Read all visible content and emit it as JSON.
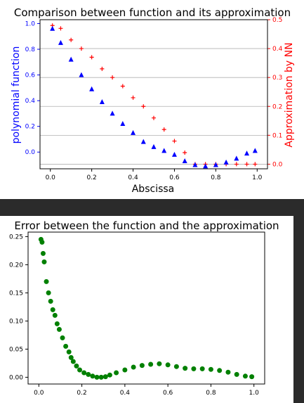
{
  "chart_data": [
    {
      "type": "scatter",
      "title": "Comparison between function and its approximation",
      "xlabel": "Abscissa",
      "ylabel_left": "polynomial function",
      "ylabel_right": "Approximation by NN",
      "xlim": [
        -0.05,
        1.05
      ],
      "ylim_left": [
        -0.13,
        1.03
      ],
      "ylim_right": [
        -0.016,
        0.5
      ],
      "x_ticks": [
        "0.0",
        "0.2",
        "0.4",
        "0.6",
        "0.8",
        "1.0"
      ],
      "y_left_ticks": [
        "0.0",
        "0.2",
        "0.4",
        "0.6",
        "0.8",
        "1.0"
      ],
      "y_right_ticks": [
        "0.0",
        "0.1",
        "0.2",
        "0.3",
        "0.4",
        "0.5"
      ],
      "grid": "horizontal, right axis",
      "colors": {
        "left": "#0000ff",
        "right": "#ff0000"
      },
      "series": [
        {
          "axis": "left",
          "marker": "triangle",
          "color": "#0000ff",
          "x": [
            0.01,
            0.05,
            0.1,
            0.15,
            0.2,
            0.25,
            0.3,
            0.35,
            0.4,
            0.45,
            0.5,
            0.55,
            0.6,
            0.65,
            0.7,
            0.75,
            0.8,
            0.85,
            0.9,
            0.95,
            0.99
          ],
          "y": [
            0.96,
            0.85,
            0.72,
            0.6,
            0.49,
            0.39,
            0.3,
            0.22,
            0.15,
            0.08,
            0.04,
            0.01,
            -0.02,
            -0.07,
            -0.1,
            -0.11,
            -0.1,
            -0.08,
            -0.05,
            -0.01,
            0.01
          ]
        },
        {
          "axis": "right",
          "marker": "plus",
          "color": "#ff0000",
          "x": [
            0.01,
            0.05,
            0.1,
            0.15,
            0.2,
            0.25,
            0.3,
            0.35,
            0.4,
            0.45,
            0.5,
            0.55,
            0.6,
            0.65,
            0.7,
            0.75,
            0.8,
            0.85,
            0.9,
            0.95,
            0.99
          ],
          "y": [
            0.48,
            0.47,
            0.43,
            0.4,
            0.37,
            0.33,
            0.3,
            0.27,
            0.23,
            0.2,
            0.16,
            0.12,
            0.08,
            0.04,
            0.0,
            0.0,
            0.0,
            0.0,
            0.0,
            0.0,
            0.0
          ]
        }
      ]
    },
    {
      "type": "scatter",
      "title": "Error between the function and the approximation",
      "xlim": [
        -0.05,
        1.05
      ],
      "ylim": [
        -0.012,
        0.258
      ],
      "x_ticks": [
        "0.0",
        "0.2",
        "0.4",
        "0.6",
        "0.8",
        "1.0"
      ],
      "y_ticks": [
        "0.00",
        "0.05",
        "0.10",
        "0.15",
        "0.20",
        "0.25"
      ],
      "grid": false,
      "colors": {
        "points": "#008000"
      },
      "series": [
        {
          "marker": "circle",
          "color": "#008000",
          "x": [
            0.01,
            0.015,
            0.02,
            0.025,
            0.035,
            0.045,
            0.055,
            0.065,
            0.075,
            0.085,
            0.095,
            0.11,
            0.125,
            0.14,
            0.15,
            0.16,
            0.175,
            0.19,
            0.21,
            0.23,
            0.25,
            0.27,
            0.29,
            0.31,
            0.33,
            0.36,
            0.4,
            0.44,
            0.48,
            0.52,
            0.56,
            0.6,
            0.64,
            0.68,
            0.72,
            0.76,
            0.8,
            0.84,
            0.88,
            0.92,
            0.96,
            0.99
          ],
          "y": [
            0.245,
            0.24,
            0.22,
            0.205,
            0.17,
            0.15,
            0.135,
            0.12,
            0.11,
            0.095,
            0.085,
            0.07,
            0.055,
            0.045,
            0.035,
            0.028,
            0.02,
            0.013,
            0.008,
            0.005,
            0.002,
            0.0,
            0.0,
            0.001,
            0.004,
            0.008,
            0.013,
            0.018,
            0.021,
            0.023,
            0.024,
            0.022,
            0.019,
            0.016,
            0.015,
            0.015,
            0.014,
            0.012,
            0.009,
            0.005,
            0.002,
            0.001
          ]
        }
      ]
    }
  ]
}
